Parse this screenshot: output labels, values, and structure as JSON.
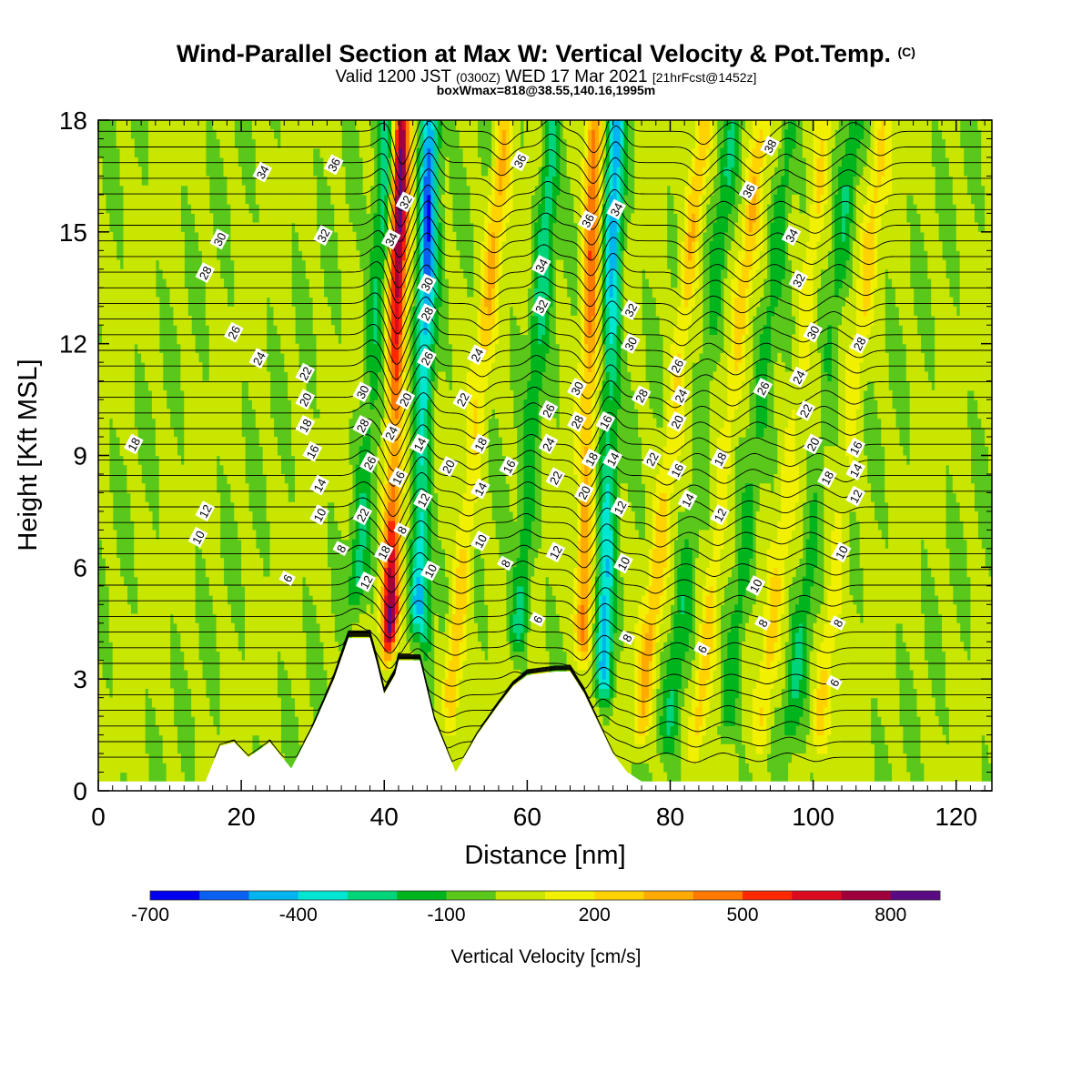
{
  "header": {
    "title": "Wind-Parallel Section at Max W: Vertical Velocity & Pot.Temp.",
    "title_mark": "(C)",
    "subtitle_main": "Valid 1200 JST",
    "subtitle_z": "(0300Z)",
    "subtitle_date": "WED 17 Mar 2021",
    "subtitle_run": "[21hrFcst@1452z]",
    "note": "boxWmax=818@38.55,140.16,1995m"
  },
  "chart_data": {
    "type": "heatmap",
    "title": "Wind-Parallel Section at Max W: Vertical Velocity & Pot.Temp.",
    "xlabel": "Distance [nm]",
    "ylabel": "Height [Kft MSL]",
    "xlim": [
      0,
      125
    ],
    "ylim": [
      0,
      18
    ],
    "x_ticks": [
      "0",
      "20",
      "40",
      "60",
      "80",
      "100",
      "120"
    ],
    "y_ticks": [
      "0",
      "3",
      "6",
      "9",
      "12",
      "15",
      "18"
    ],
    "colorbar": {
      "label": "Vertical Velocity [cm/s]",
      "tick_labels": [
        "-700",
        "-400",
        "-100",
        "200",
        "500",
        "800"
      ],
      "tick_values": [
        -700,
        -400,
        -100,
        200,
        500,
        800
      ],
      "levels": [
        -700,
        -600,
        -500,
        -400,
        -300,
        -200,
        -100,
        0,
        100,
        200,
        300,
        400,
        500,
        600,
        700,
        800,
        900
      ],
      "colors": [
        "#0000ee",
        "#0a60f0",
        "#00b4f0",
        "#00e6d2",
        "#00d47a",
        "#00b41e",
        "#5ac81a",
        "#c8e600",
        "#f0f000",
        "#ffd200",
        "#ffaa00",
        "#ff7800",
        "#ff2800",
        "#dc0a1e",
        "#a0003c",
        "#5a0a82"
      ]
    },
    "background_value_range": [
      -100,
      100
    ],
    "updrafts": [
      {
        "x_surface": 40.5,
        "lean_nm_per_kft": 0.12,
        "peak_cm_s": 818
      },
      {
        "x_surface": 67.5,
        "lean_nm_per_kft": 0.12,
        "peak_cm_s": 500
      },
      {
        "x_surface": 76,
        "lean_nm_per_kft": 0.55,
        "peak_cm_s": 300
      },
      {
        "x_surface": 84,
        "lean_nm_per_kft": 0.55,
        "peak_cm_s": 250
      },
      {
        "x_surface": 93,
        "lean_nm_per_kft": 0.55,
        "peak_cm_s": 200
      },
      {
        "x_surface": 101,
        "lean_nm_per_kft": 0.55,
        "peak_cm_s": 200
      },
      {
        "x_surface": 49,
        "lean_nm_per_kft": 0.5,
        "peak_cm_s": 300
      }
    ],
    "downdrafts": [
      {
        "x_surface": 44.5,
        "lean_nm_per_kft": 0.12,
        "peak_cm_s": -600
      },
      {
        "x_surface": 70.5,
        "lean_nm_per_kft": 0.12,
        "peak_cm_s": -500
      },
      {
        "x_surface": 35,
        "lean_nm_per_kft": 0.35,
        "peak_cm_s": -300
      },
      {
        "x_surface": 58,
        "lean_nm_per_kft": 0.35,
        "peak_cm_s": -300
      },
      {
        "x_surface": 80,
        "lean_nm_per_kft": 0.55,
        "peak_cm_s": -200
      },
      {
        "x_surface": 88,
        "lean_nm_per_kft": 0.55,
        "peak_cm_s": -200
      },
      {
        "x_surface": 97,
        "lean_nm_per_kft": 0.55,
        "peak_cm_s": -200
      }
    ],
    "terrain_kft": {
      "x": [
        0,
        15,
        17,
        19,
        21,
        24,
        27,
        30,
        33,
        35,
        38,
        39,
        40,
        41.5,
        42,
        45,
        47,
        50,
        53,
        56,
        58,
        60,
        64,
        66,
        68,
        70,
        72,
        74,
        76,
        125
      ],
      "height": [
        0.25,
        0.25,
        1.2,
        1.3,
        0.9,
        1.3,
        0.6,
        1.7,
        3.0,
        4.1,
        4.1,
        3.4,
        2.6,
        3.1,
        3.5,
        3.5,
        1.9,
        0.5,
        1.5,
        2.3,
        2.8,
        3.1,
        3.2,
        3.2,
        2.6,
        1.8,
        1.0,
        0.5,
        0.25,
        0.25
      ]
    },
    "isentrope_labels": [
      {
        "x": 23,
        "y": 16.6,
        "text": "34"
      },
      {
        "x": 33,
        "y": 16.8,
        "text": "36"
      },
      {
        "x": 17,
        "y": 14.8,
        "text": "30"
      },
      {
        "x": 15,
        "y": 13.9,
        "text": "28"
      },
      {
        "x": 19,
        "y": 12.3,
        "text": "26"
      },
      {
        "x": 22.5,
        "y": 11.6,
        "text": "24"
      },
      {
        "x": 31.5,
        "y": 14.9,
        "text": "32"
      },
      {
        "x": 29,
        "y": 11.2,
        "text": "22"
      },
      {
        "x": 29,
        "y": 10.5,
        "text": "20"
      },
      {
        "x": 29,
        "y": 9.8,
        "text": "18"
      },
      {
        "x": 30,
        "y": 9.1,
        "text": "16"
      },
      {
        "x": 31,
        "y": 8.2,
        "text": "14"
      },
      {
        "x": 31,
        "y": 7.4,
        "text": "10"
      },
      {
        "x": 34,
        "y": 6.5,
        "text": "8"
      },
      {
        "x": 26.5,
        "y": 5.7,
        "text": "6"
      },
      {
        "x": 15,
        "y": 7.5,
        "text": "12"
      },
      {
        "x": 14,
        "y": 6.8,
        "text": "10"
      },
      {
        "x": 5,
        "y": 9.3,
        "text": "18"
      },
      {
        "x": 37,
        "y": 10.7,
        "text": "30"
      },
      {
        "x": 37,
        "y": 9.8,
        "text": "28"
      },
      {
        "x": 38,
        "y": 8.8,
        "text": "26"
      },
      {
        "x": 37,
        "y": 7.4,
        "text": "22"
      },
      {
        "x": 37.5,
        "y": 5.6,
        "text": "12"
      },
      {
        "x": 40,
        "y": 6.4,
        "text": "18"
      },
      {
        "x": 43,
        "y": 15.8,
        "text": "32"
      },
      {
        "x": 41,
        "y": 14.8,
        "text": "34"
      },
      {
        "x": 43,
        "y": 10.5,
        "text": "20"
      },
      {
        "x": 41,
        "y": 9.6,
        "text": "24"
      },
      {
        "x": 42,
        "y": 8.4,
        "text": "16"
      },
      {
        "x": 42.5,
        "y": 7.0,
        "text": "8"
      },
      {
        "x": 46,
        "y": 13.6,
        "text": "30"
      },
      {
        "x": 46,
        "y": 12.8,
        "text": "28"
      },
      {
        "x": 46,
        "y": 11.6,
        "text": "26"
      },
      {
        "x": 45,
        "y": 9.3,
        "text": "14"
      },
      {
        "x": 45.5,
        "y": 7.8,
        "text": "12"
      },
      {
        "x": 46.5,
        "y": 5.9,
        "text": "10"
      },
      {
        "x": 53,
        "y": 11.7,
        "text": "24"
      },
      {
        "x": 51,
        "y": 10.5,
        "text": "22"
      },
      {
        "x": 53.5,
        "y": 9.3,
        "text": "18"
      },
      {
        "x": 49,
        "y": 8.7,
        "text": "20"
      },
      {
        "x": 53.5,
        "y": 8.1,
        "text": "14"
      },
      {
        "x": 53.5,
        "y": 6.7,
        "text": "10"
      },
      {
        "x": 57.5,
        "y": 8.7,
        "text": "16"
      },
      {
        "x": 57,
        "y": 6.1,
        "text": "8"
      },
      {
        "x": 59,
        "y": 16.9,
        "text": "36"
      },
      {
        "x": 62,
        "y": 14.1,
        "text": "34"
      },
      {
        "x": 62,
        "y": 13.0,
        "text": "32"
      },
      {
        "x": 63,
        "y": 10.2,
        "text": "26"
      },
      {
        "x": 63,
        "y": 9.3,
        "text": "24"
      },
      {
        "x": 64,
        "y": 8.4,
        "text": "22"
      },
      {
        "x": 64,
        "y": 6.4,
        "text": "12"
      },
      {
        "x": 61.5,
        "y": 4.6,
        "text": "6"
      },
      {
        "x": 68.5,
        "y": 15.3,
        "text": "36"
      },
      {
        "x": 72.5,
        "y": 15.6,
        "text": "34"
      },
      {
        "x": 67,
        "y": 10.8,
        "text": "30"
      },
      {
        "x": 67,
        "y": 9.9,
        "text": "28"
      },
      {
        "x": 69,
        "y": 8.9,
        "text": "18"
      },
      {
        "x": 68,
        "y": 8.0,
        "text": "20"
      },
      {
        "x": 71,
        "y": 9.9,
        "text": "16"
      },
      {
        "x": 72,
        "y": 8.9,
        "text": "14"
      },
      {
        "x": 73,
        "y": 7.6,
        "text": "12"
      },
      {
        "x": 73.5,
        "y": 6.1,
        "text": "10"
      },
      {
        "x": 74,
        "y": 4.1,
        "text": "8"
      },
      {
        "x": 74.5,
        "y": 12.9,
        "text": "32"
      },
      {
        "x": 74.5,
        "y": 12.0,
        "text": "30"
      },
      {
        "x": 76,
        "y": 10.6,
        "text": "28"
      },
      {
        "x": 77.5,
        "y": 8.9,
        "text": "22"
      },
      {
        "x": 81,
        "y": 11.4,
        "text": "26"
      },
      {
        "x": 81.5,
        "y": 10.6,
        "text": "24"
      },
      {
        "x": 81,
        "y": 9.9,
        "text": "20"
      },
      {
        "x": 81,
        "y": 8.6,
        "text": "16"
      },
      {
        "x": 82.5,
        "y": 7.8,
        "text": "14"
      },
      {
        "x": 87,
        "y": 8.9,
        "text": "18"
      },
      {
        "x": 87,
        "y": 7.4,
        "text": "12"
      },
      {
        "x": 84.5,
        "y": 3.8,
        "text": "6"
      },
      {
        "x": 94,
        "y": 17.3,
        "text": "38"
      },
      {
        "x": 91,
        "y": 16.1,
        "text": "36"
      },
      {
        "x": 97,
        "y": 14.9,
        "text": "34"
      },
      {
        "x": 98,
        "y": 13.7,
        "text": "32"
      },
      {
        "x": 100,
        "y": 12.3,
        "text": "30"
      },
      {
        "x": 93,
        "y": 10.8,
        "text": "26"
      },
      {
        "x": 98,
        "y": 11.1,
        "text": "24"
      },
      {
        "x": 99,
        "y": 10.2,
        "text": "22"
      },
      {
        "x": 100,
        "y": 9.3,
        "text": "20"
      },
      {
        "x": 102,
        "y": 8.4,
        "text": "18"
      },
      {
        "x": 106,
        "y": 9.2,
        "text": "16"
      },
      {
        "x": 106,
        "y": 8.6,
        "text": "14"
      },
      {
        "x": 106,
        "y": 7.9,
        "text": "12"
      },
      {
        "x": 104,
        "y": 6.4,
        "text": "10"
      },
      {
        "x": 92,
        "y": 5.5,
        "text": "10"
      },
      {
        "x": 93,
        "y": 4.5,
        "text": "8"
      },
      {
        "x": 103.5,
        "y": 4.5,
        "text": "8"
      },
      {
        "x": 103,
        "y": 2.9,
        "text": "6"
      },
      {
        "x": 106.5,
        "y": 12.0,
        "text": "28"
      }
    ],
    "grid": false,
    "legend": "bottom"
  }
}
